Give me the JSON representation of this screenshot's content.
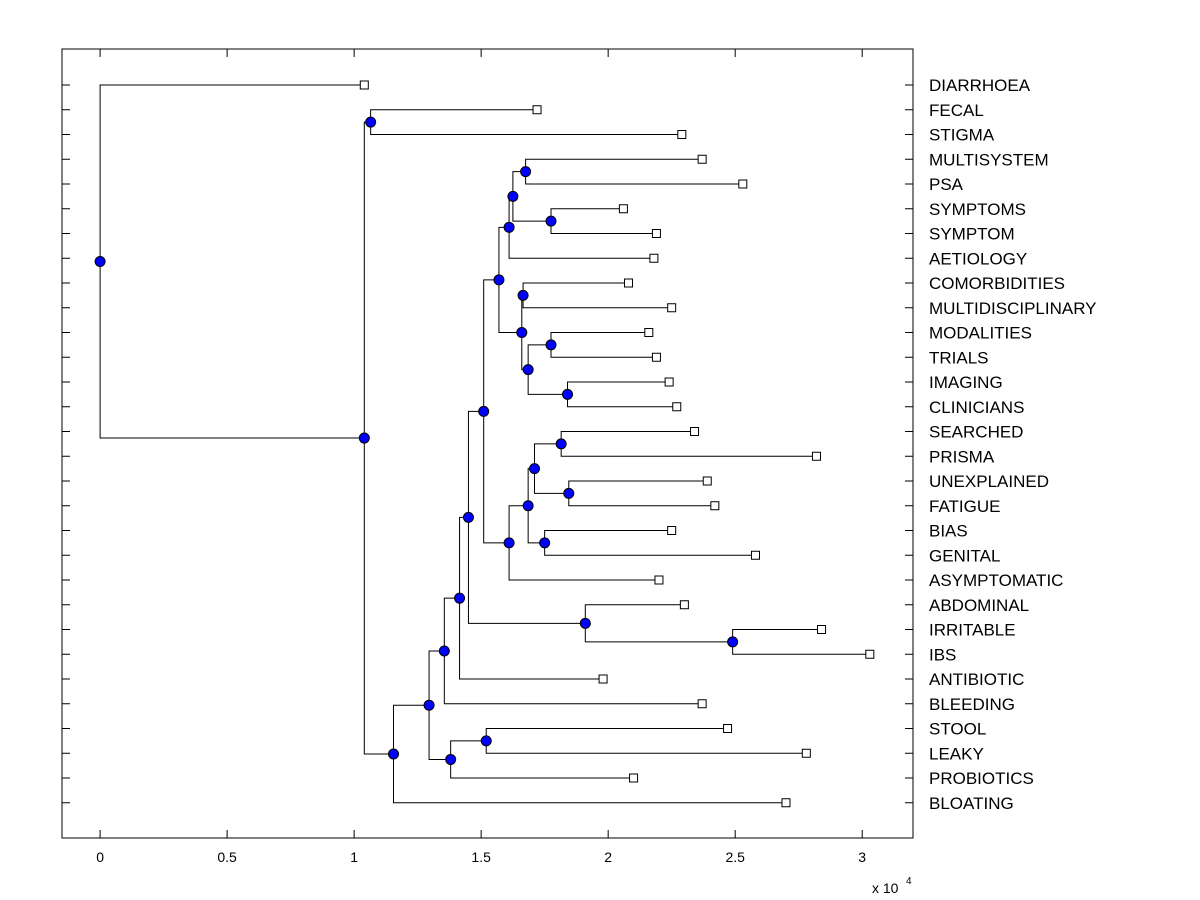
{
  "chart_data": {
    "type": "dendrogram",
    "x_axis": {
      "ticks": [
        0,
        5000,
        10000,
        15000,
        20000,
        25000,
        30000
      ],
      "tick_labels": [
        "0",
        "0.5",
        "1",
        "1.5",
        "2",
        "2.5",
        "3"
      ],
      "exponent_base": "x 10",
      "exponent_power": "4",
      "xlim": [
        -1500,
        32000
      ]
    },
    "grid": false,
    "leaves": [
      {
        "label": "DIARRHOEA",
        "x": 10400
      },
      {
        "label": "FECAL",
        "x": 17200
      },
      {
        "label": "STIGMA",
        "x": 22900
      },
      {
        "label": "MULTISYSTEM",
        "x": 23700
      },
      {
        "label": "PSA",
        "x": 25300
      },
      {
        "label": "SYMPTOMS",
        "x": 20600
      },
      {
        "label": "SYMPTOM",
        "x": 21900
      },
      {
        "label": "AETIOLOGY",
        "x": 21800
      },
      {
        "label": "COMORBIDITIES",
        "x": 20800
      },
      {
        "label": "MULTIDISCIPLINARY",
        "x": 22500
      },
      {
        "label": "MODALITIES",
        "x": 21600
      },
      {
        "label": "TRIALS",
        "x": 21900
      },
      {
        "label": "IMAGING",
        "x": 22400
      },
      {
        "label": "CLINICIANS",
        "x": 22700
      },
      {
        "label": "SEARCHED",
        "x": 23400
      },
      {
        "label": "PRISMA",
        "x": 28200
      },
      {
        "label": "UNEXPLAINED",
        "x": 23900
      },
      {
        "label": "FATIGUE",
        "x": 24200
      },
      {
        "label": "BIAS",
        "x": 22500
      },
      {
        "label": "GENITAL",
        "x": 25800
      },
      {
        "label": "ASYMPTOMATIC",
        "x": 22000
      },
      {
        "label": "ABDOMINAL",
        "x": 23000
      },
      {
        "label": "IRRITABLE",
        "x": 28400
      },
      {
        "label": "IBS",
        "x": 30300
      },
      {
        "label": "ANTIBIOTIC",
        "x": 19800
      },
      {
        "label": "BLEEDING",
        "x": 23700
      },
      {
        "label": "STOOL",
        "x": 24700
      },
      {
        "label": "LEAKY",
        "x": 27800
      },
      {
        "label": "PROBIOTICS",
        "x": 21000
      },
      {
        "label": "BLOATING",
        "x": 27000
      }
    ],
    "nodes": [
      {
        "id": "A",
        "x": 0,
        "children": [
          "L0",
          "B"
        ]
      },
      {
        "id": "B",
        "x": 10400,
        "children": [
          "C",
          "N22"
        ]
      },
      {
        "id": "C",
        "x": 10650,
        "children": [
          "L1",
          "L2"
        ]
      },
      {
        "id": "N22",
        "x": 11550,
        "children": [
          "N23",
          "L29"
        ]
      },
      {
        "id": "N23",
        "x": 12950,
        "children": [
          "N24",
          "N28"
        ]
      },
      {
        "id": "N24",
        "x": 13550,
        "children": [
          "N25",
          "L25"
        ]
      },
      {
        "id": "N25",
        "x": 14150,
        "children": [
          "N26",
          "L24"
        ]
      },
      {
        "id": "N26",
        "x": 14500,
        "children": [
          "N1",
          "N30"
        ]
      },
      {
        "id": "N1",
        "x": 15100,
        "children": [
          "N2",
          "N15"
        ]
      },
      {
        "id": "N2",
        "x": 15700,
        "children": [
          "N3",
          "N8"
        ]
      },
      {
        "id": "N3",
        "x": 16100,
        "children": [
          "N4",
          "L7"
        ]
      },
      {
        "id": "N4",
        "x": 16250,
        "children": [
          "N5",
          "N6"
        ]
      },
      {
        "id": "N5",
        "x": 16750,
        "children": [
          "L3",
          "L4"
        ]
      },
      {
        "id": "N6",
        "x": 17750,
        "children": [
          "L5",
          "L6"
        ]
      },
      {
        "id": "N8",
        "x": 16600,
        "children": [
          "N9",
          "N10"
        ]
      },
      {
        "id": "N9",
        "x": 16650,
        "children": [
          "L8",
          "L9"
        ]
      },
      {
        "id": "N10",
        "x": 16850,
        "children": [
          "N11",
          "N12"
        ]
      },
      {
        "id": "N11",
        "x": 17750,
        "children": [
          "L10",
          "L11"
        ]
      },
      {
        "id": "N12",
        "x": 18400,
        "children": [
          "L12",
          "L13"
        ]
      },
      {
        "id": "N15",
        "x": 16100,
        "children": [
          "N16",
          "L20"
        ]
      },
      {
        "id": "N16",
        "x": 16850,
        "children": [
          "N17",
          "N20"
        ]
      },
      {
        "id": "N17",
        "x": 17100,
        "children": [
          "N18",
          "N19"
        ]
      },
      {
        "id": "N18",
        "x": 18150,
        "children": [
          "L14",
          "L15"
        ]
      },
      {
        "id": "N19",
        "x": 18450,
        "children": [
          "L16",
          "L17"
        ]
      },
      {
        "id": "N20",
        "x": 17500,
        "children": [
          "L18",
          "L19"
        ]
      },
      {
        "id": "N30",
        "x": 19100,
        "children": [
          "L21",
          "N31"
        ]
      },
      {
        "id": "N31",
        "x": 24900,
        "children": [
          "L22",
          "L23"
        ]
      },
      {
        "id": "N28",
        "x": 13800,
        "children": [
          "N29",
          "L28"
        ]
      },
      {
        "id": "N29",
        "x": 15200,
        "children": [
          "L26",
          "L27"
        ]
      }
    ]
  }
}
